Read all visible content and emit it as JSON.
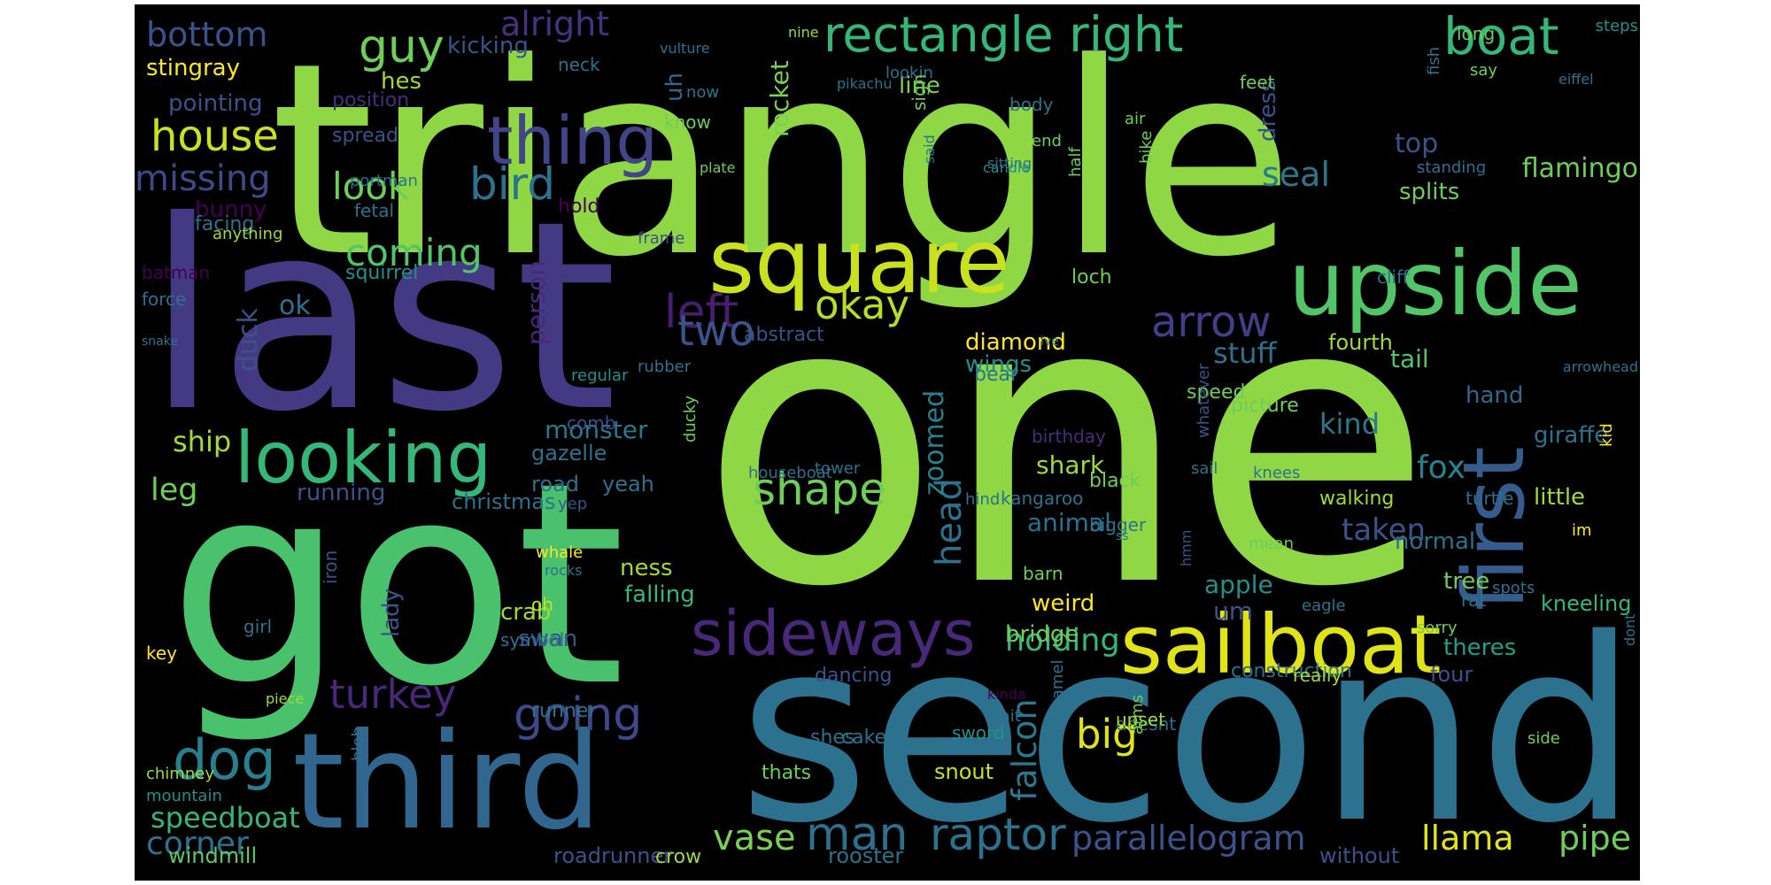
{
  "colors": {
    "page_background": "#ffffff",
    "cloud_background": "#000000",
    "palette": [
      "#440154",
      "#472d7b",
      "#3b528b",
      "#2c728e",
      "#21918c",
      "#28ae80",
      "#5ec962",
      "#addc30",
      "#fde725"
    ]
  },
  "words": [
    {
      "text": "triangle",
      "color": "#8fd744"
    },
    {
      "text": "one",
      "color": "#8fd744"
    },
    {
      "text": "got",
      "color": "#4ac16d"
    },
    {
      "text": "last",
      "color": "#443a83"
    },
    {
      "text": "second",
      "color": "#2c728e"
    },
    {
      "text": "third",
      "color": "#31668e"
    },
    {
      "text": "square",
      "color": "#cae11f"
    },
    {
      "text": "upside",
      "color": "#52c569"
    },
    {
      "text": "first",
      "color": "#365c8d"
    },
    {
      "text": "sailboat",
      "color": "#e0e318"
    },
    {
      "text": "rectangle right",
      "color": "#35b779"
    },
    {
      "text": "boat",
      "color": "#35b779"
    },
    {
      "text": "looking",
      "color": "#35b779"
    },
    {
      "text": "sideways",
      "color": "#482878"
    },
    {
      "text": "thing",
      "color": "#414487"
    },
    {
      "text": "guy",
      "color": "#6ece58"
    },
    {
      "text": "bottom",
      "color": "#3b528b"
    },
    {
      "text": "alright",
      "color": "#46327e"
    },
    {
      "text": "house",
      "color": "#cae11f"
    },
    {
      "text": "missing",
      "color": "#3e4989"
    },
    {
      "text": "look",
      "color": "#6ece58"
    },
    {
      "text": "bird",
      "color": "#2c728e"
    },
    {
      "text": "coming",
      "color": "#52c569"
    },
    {
      "text": "left",
      "color": "#481f70"
    },
    {
      "text": "arrow",
      "color": "#433e85"
    },
    {
      "text": "okay",
      "color": "#b5de2b"
    },
    {
      "text": "two",
      "color": "#3b528b"
    },
    {
      "text": "dog",
      "color": "#27808e"
    },
    {
      "text": "going",
      "color": "#3e4989"
    },
    {
      "text": "turkey",
      "color": "#482878"
    },
    {
      "text": "shape",
      "color": "#6ece58"
    },
    {
      "text": "big",
      "color": "#e0e318"
    },
    {
      "text": "man",
      "color": "#2e6e8e"
    },
    {
      "text": "raptor",
      "color": "#2c728e"
    },
    {
      "text": "parallelogram",
      "color": "#3b528b"
    },
    {
      "text": "llama",
      "color": "#e0e318"
    },
    {
      "text": "pipe",
      "color": "#6ece58"
    },
    {
      "text": "falcon",
      "color": "#2a788e"
    },
    {
      "text": "holding",
      "color": "#35b779"
    },
    {
      "text": "seal",
      "color": "#2a788e"
    },
    {
      "text": "flamingo",
      "color": "#6ece58"
    },
    {
      "text": "top",
      "color": "#3b528b"
    },
    {
      "text": "stuff",
      "color": "#2c728e"
    },
    {
      "text": "kind",
      "color": "#2a788e"
    },
    {
      "text": "fox",
      "color": "#25838e"
    },
    {
      "text": "head",
      "color": "#2c728e"
    },
    {
      "text": "zoomed",
      "color": "#25838e"
    },
    {
      "text": "duck",
      "color": "#3b528b"
    },
    {
      "text": "person",
      "color": "#482878"
    },
    {
      "text": "monster",
      "color": "#2a788e"
    },
    {
      "text": "leg",
      "color": "#6ece58"
    },
    {
      "text": "ship",
      "color": "#a0da39"
    },
    {
      "text": "speedboat",
      "color": "#35b779"
    },
    {
      "text": "corner",
      "color": "#2c728e"
    },
    {
      "text": "vase",
      "color": "#7ad151"
    },
    {
      "text": "ok",
      "color": "#2c728e"
    },
    {
      "text": "stingray",
      "color": "#fde725"
    },
    {
      "text": "pointing",
      "color": "#3b528b"
    },
    {
      "text": "kicking",
      "color": "#3b528b"
    },
    {
      "text": "hes",
      "color": "#a0da39"
    },
    {
      "text": "rocket",
      "color": "#7ad151"
    },
    {
      "text": "uh",
      "color": "#31688e"
    },
    {
      "text": "dress",
      "color": "#3b528b"
    },
    {
      "text": "splits",
      "color": "#6ece58"
    },
    {
      "text": "tail",
      "color": "#52c569"
    },
    {
      "text": "hand",
      "color": "#31688e"
    },
    {
      "text": "giraffe",
      "color": "#2c728e"
    },
    {
      "text": "little",
      "color": "#a0da39"
    },
    {
      "text": "normal",
      "color": "#2c728e"
    },
    {
      "text": "tree",
      "color": "#6ece58"
    },
    {
      "text": "kneeling",
      "color": "#35b779"
    },
    {
      "text": "apple",
      "color": "#21918c"
    },
    {
      "text": "um",
      "color": "#3b528b"
    },
    {
      "text": "theres",
      "color": "#1fa187"
    },
    {
      "text": "four",
      "color": "#3b528b"
    },
    {
      "text": "taken",
      "color": "#3b528b"
    },
    {
      "text": "animal",
      "color": "#2c728e"
    },
    {
      "text": "shark",
      "color": "#a0da39"
    },
    {
      "text": "diamond",
      "color": "#fde725"
    },
    {
      "text": "wings",
      "color": "#21918c"
    },
    {
      "text": "fourth",
      "color": "#a0da39"
    },
    {
      "text": "weird",
      "color": "#fde725"
    },
    {
      "text": "bridge",
      "color": "#6ece58"
    },
    {
      "text": "falling",
      "color": "#35b779"
    },
    {
      "text": "crab",
      "color": "#a0da39"
    },
    {
      "text": "swan",
      "color": "#3b528b"
    },
    {
      "text": "lady",
      "color": "#3b528b"
    },
    {
      "text": "ness",
      "color": "#a0da39"
    },
    {
      "text": "running",
      "color": "#3b528b"
    },
    {
      "text": "christmas",
      "color": "#2c728e"
    },
    {
      "text": "gazelle",
      "color": "#2c728e"
    },
    {
      "text": "road",
      "color": "#2c728e"
    },
    {
      "text": "yeah",
      "color": "#2c728e"
    },
    {
      "text": "windmill",
      "color": "#5ec962"
    },
    {
      "text": "roadrunner",
      "color": "#3b528b"
    },
    {
      "text": "crow",
      "color": "#a0da39"
    },
    {
      "text": "rooster",
      "color": "#2c728e"
    },
    {
      "text": "without",
      "color": "#3b528b"
    },
    {
      "text": "snout",
      "color": "#cae11f"
    },
    {
      "text": "cake",
      "color": "#2c728e"
    },
    {
      "text": "shes",
      "color": "#2c728e"
    },
    {
      "text": "thats",
      "color": "#6ece58"
    },
    {
      "text": "dancing",
      "color": "#3b528b"
    },
    {
      "text": "construction",
      "color": "#2c728e"
    },
    {
      "text": "bunny",
      "color": "#440154"
    },
    {
      "text": "facing",
      "color": "#2c728e"
    },
    {
      "text": "squirrel",
      "color": "#21918c"
    },
    {
      "text": "position",
      "color": "#472d7b"
    },
    {
      "text": "spread",
      "color": "#3b528b"
    },
    {
      "text": "fetal",
      "color": "#2c728e"
    },
    {
      "text": "hold",
      "color": "#440154"
    },
    {
      "text": "portman",
      "color": "#2c728e"
    },
    {
      "text": "line",
      "color": "#7ad151"
    },
    {
      "text": "body",
      "color": "#2c728e"
    },
    {
      "text": "feet",
      "color": "#6ece58"
    },
    {
      "text": "loch",
      "color": "#6ece58"
    },
    {
      "text": "cliff",
      "color": "#2c728e"
    },
    {
      "text": "bear",
      "color": "#2c728e"
    },
    {
      "text": "abstract",
      "color": "#3b528b"
    },
    {
      "text": "picture",
      "color": "#6ece58"
    },
    {
      "text": "speed",
      "color": "#6ece58"
    },
    {
      "text": "birthday",
      "color": "#472d7b"
    },
    {
      "text": "black",
      "color": "#6ece58"
    },
    {
      "text": "walking",
      "color": "#a0da39"
    },
    {
      "text": "turtle",
      "color": "#2c728e"
    },
    {
      "text": "bigger",
      "color": "#2c728e"
    },
    {
      "text": "barn",
      "color": "#6ece58"
    },
    {
      "text": "kangaroo",
      "color": "#2c728e"
    },
    {
      "text": "hind",
      "color": "#2c728e"
    },
    {
      "text": "tower",
      "color": "#2c728e"
    },
    {
      "text": "houseboat",
      "color": "#2c728e"
    },
    {
      "text": "mean",
      "color": "#6ece58"
    },
    {
      "text": "eagle",
      "color": "#2c728e"
    },
    {
      "text": "rat",
      "color": "#2c728e"
    },
    {
      "text": "sorry",
      "color": "#6ece58"
    },
    {
      "text": "really",
      "color": "#a0da39"
    },
    {
      "text": "doesnt",
      "color": "#2c728e"
    },
    {
      "text": "sword",
      "color": "#21918c"
    },
    {
      "text": "arms",
      "color": "#6ece58"
    },
    {
      "text": "camel",
      "color": "#2c728e"
    },
    {
      "text": "upset",
      "color": "#a0da39"
    },
    {
      "text": "side",
      "color": "#6ece58"
    },
    {
      "text": "chimney",
      "color": "#a0da39"
    },
    {
      "text": "mountain",
      "color": "#21918c"
    },
    {
      "text": "blob",
      "color": "#2c728e"
    },
    {
      "text": "iron",
      "color": "#3b528b"
    },
    {
      "text": "girl",
      "color": "#2c728e"
    },
    {
      "text": "key",
      "color": "#fde725"
    },
    {
      "text": "runner",
      "color": "#2c728e"
    },
    {
      "text": "piece",
      "color": "#a0da39"
    },
    {
      "text": "symbol",
      "color": "#2c728e"
    },
    {
      "text": "oh",
      "color": "#cae11f"
    },
    {
      "text": "whale",
      "color": "#fde725"
    },
    {
      "text": "rocks",
      "color": "#2c728e"
    },
    {
      "text": "yep",
      "color": "#3b528b"
    },
    {
      "text": "rubber",
      "color": "#2c728e"
    },
    {
      "text": "ducky",
      "color": "#6ece58"
    },
    {
      "text": "regular",
      "color": "#21918c"
    },
    {
      "text": "comb",
      "color": "#3b528b"
    },
    {
      "text": "frame",
      "color": "#3b528b"
    },
    {
      "text": "batman",
      "color": "#440154"
    },
    {
      "text": "force",
      "color": "#2c728e"
    },
    {
      "text": "snake",
      "color": "#2c728e"
    },
    {
      "text": "anything",
      "color": "#a0da39"
    },
    {
      "text": "neck",
      "color": "#2c728e"
    },
    {
      "text": "vulture",
      "color": "#2c728e"
    },
    {
      "text": "nine",
      "color": "#a0da39"
    },
    {
      "text": "lookin",
      "color": "#2c728e"
    },
    {
      "text": "pikachu",
      "color": "#2c728e"
    },
    {
      "text": "sign",
      "color": "#6ece58"
    },
    {
      "text": "now",
      "color": "#2c728e"
    },
    {
      "text": "know",
      "color": "#6ece58"
    },
    {
      "text": "plate",
      "color": "#6ece58"
    },
    {
      "text": "said",
      "color": "#2c728e"
    },
    {
      "text": "candle",
      "color": "#21918c"
    },
    {
      "text": "sitting",
      "color": "#2c728e"
    },
    {
      "text": "half",
      "color": "#6ece58"
    },
    {
      "text": "end",
      "color": "#6ece58"
    },
    {
      "text": "standing",
      "color": "#2c728e"
    },
    {
      "text": "long",
      "color": "#6ece58"
    },
    {
      "text": "fish",
      "color": "#2c728e"
    },
    {
      "text": "say",
      "color": "#6ece58"
    },
    {
      "text": "eiffel",
      "color": "#2c728e"
    },
    {
      "text": "steps",
      "color": "#21918c"
    },
    {
      "text": "air",
      "color": "#6ece58"
    },
    {
      "text": "bike",
      "color": "#6ece58"
    },
    {
      "text": "sail",
      "color": "#2c728e"
    },
    {
      "text": "knees",
      "color": "#2c728e"
    },
    {
      "text": "arrowhead",
      "color": "#2c728e"
    },
    {
      "text": "whatever",
      "color": "#3b528b"
    },
    {
      "text": "kid",
      "color": "#fde725"
    },
    {
      "text": "im",
      "color": "#fde725"
    },
    {
      "text": "spots",
      "color": "#2c728e"
    },
    {
      "text": "dont",
      "color": "#2c728e"
    },
    {
      "text": "wait",
      "color": "#2c728e"
    },
    {
      "text": "kinda",
      "color": "#440154"
    },
    {
      "text": "hmm",
      "color": "#3b528b"
    },
    {
      "text": "ive",
      "color": "#2c728e"
    },
    {
      "text": "ss",
      "color": "#2c728e"
    }
  ]
}
